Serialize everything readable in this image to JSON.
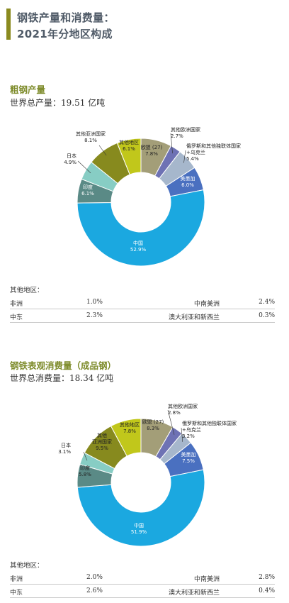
{
  "header": {
    "line1": "钢铁产量和消费量：",
    "line2": "2021年分地区构成"
  },
  "colors": {
    "china": "#1ba8e0",
    "japan": "#87cdc4",
    "india": "#5a8a86",
    "other_asia": "#878a1e",
    "other_regions": "#c1c71b",
    "eu27": "#a39e78",
    "other_europe": "#6e72b4",
    "cis": "#a6b7cc",
    "usmca": "#4a70c0",
    "header_accent": "#8a8a1f",
    "section_title": "#7d8b2a"
  },
  "sections": [
    {
      "title": "粗钢产量",
      "total": "世界总产量：19.51 亿吨",
      "others_heading": "其他地区：",
      "others": [
        {
          "left_name": "非洲",
          "left_value": "1.0%",
          "right_name": "中南美洲",
          "right_value": "2.4%"
        },
        {
          "left_name": "中东",
          "left_value": "2.3%",
          "right_name": "澳大利亚和新西兰",
          "right_value": "0.3%"
        }
      ]
    },
    {
      "title": "钢铁表观消费量（成品钢）",
      "total": "世界总消费量：18.34 亿吨",
      "others_heading": "其他地区：",
      "others": [
        {
          "left_name": "非洲",
          "left_value": "2.0%",
          "right_name": "中南美洲",
          "right_value": "2.8%"
        },
        {
          "left_name": "中东",
          "left_value": "2.6%",
          "right_name": "澳大利亚和新西兰",
          "right_value": "0.4%"
        }
      ]
    }
  ],
  "chart_data": [
    {
      "type": "pie",
      "variant": "donut",
      "unit": "%",
      "slices": [
        {
          "name": "欧盟 (27)",
          "value": 7.8,
          "label": "7.8%",
          "color_key": "eu27"
        },
        {
          "name": "其他欧洲国家",
          "value": 2.7,
          "label": "2.7%",
          "color_key": "other_europe"
        },
        {
          "name": "俄罗斯和其他独联体国家+乌克兰",
          "value": 5.4,
          "label": "5.4%",
          "color_key": "cis"
        },
        {
          "name": "美墨加",
          "value": 6.0,
          "label": "6.0%",
          "color_key": "usmca"
        },
        {
          "name": "中国",
          "value": 52.9,
          "label": "52.9%",
          "color_key": "china"
        },
        {
          "name": "印度",
          "value": 6.1,
          "label": "6.1%",
          "color_key": "india"
        },
        {
          "name": "日本",
          "value": 4.9,
          "label": "4.9%",
          "color_key": "japan"
        },
        {
          "name": "其他亚洲国家",
          "value": 8.1,
          "label": "8.1%",
          "color_key": "other_asia"
        },
        {
          "name": "其他地区",
          "value": 6.1,
          "label": "6.1%",
          "color_key": "other_regions"
        }
      ]
    },
    {
      "type": "pie",
      "variant": "donut",
      "unit": "%",
      "slices": [
        {
          "name": "欧盟 (27)",
          "value": 8.3,
          "label": "8.3%",
          "color_key": "eu27"
        },
        {
          "name": "其他欧洲国家",
          "value": 2.8,
          "label": "2.8%",
          "color_key": "other_europe"
        },
        {
          "name": "俄罗斯和其他独联体国家+乌克兰",
          "value": 3.2,
          "label": "3.2%",
          "color_key": "cis"
        },
        {
          "name": "美墨加",
          "value": 7.5,
          "label": "7.5%",
          "color_key": "usmca"
        },
        {
          "name": "中国",
          "value": 51.9,
          "label": "51.9%",
          "color_key": "china"
        },
        {
          "name": "印度",
          "value": 5.8,
          "label": "5.8%",
          "color_key": "india"
        },
        {
          "name": "日本",
          "value": 3.1,
          "label": "3.1%",
          "color_key": "japan"
        },
        {
          "name": "其他亚洲国家",
          "value": 9.5,
          "label": "9.5%",
          "color_key": "other_asia"
        },
        {
          "name": "其他地区",
          "value": 7.8,
          "label": "7.8%",
          "color_key": "other_regions"
        }
      ]
    }
  ]
}
